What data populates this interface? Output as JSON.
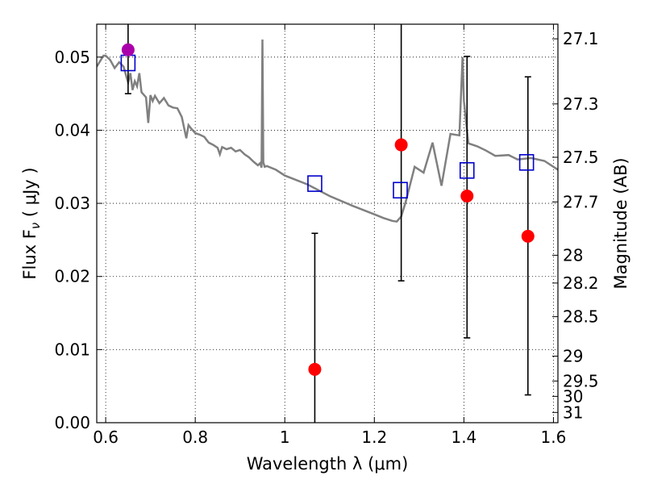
{
  "chart_data": {
    "type": "scatter",
    "xlabel": "Wavelength  λ (μm)",
    "ylabel": "Flux  F",
    "ylabel_sub": "ν",
    "ylabel_unit": "  ( μJy )",
    "y2label": "Magnitude (AB)",
    "xlim": [
      0.58,
      1.61
    ],
    "ylim": [
      0.0,
      0.0545
    ],
    "grid": true,
    "x_ticks": [
      0.6,
      0.8,
      1.0,
      1.2,
      1.4,
      1.6
    ],
    "x_tick_labels": [
      "0.6",
      "0.8",
      "1",
      "1.2",
      "1.4",
      "1.6"
    ],
    "y_ticks": [
      0.0,
      0.01,
      0.02,
      0.03,
      0.04,
      0.05
    ],
    "y_tick_labels": [
      "0.00",
      "0.01",
      "0.02",
      "0.03",
      "0.04",
      "0.05"
    ],
    "y2_ticks": [
      {
        "flux": 0.0525,
        "label": "27.1"
      },
      {
        "flux": 0.0436,
        "label": "27.3"
      },
      {
        "flux": 0.0363,
        "label": "27.5"
      },
      {
        "flux": 0.0302,
        "label": "27.7"
      },
      {
        "flux": 0.0229,
        "label": "28"
      },
      {
        "flux": 0.0191,
        "label": "28.2"
      },
      {
        "flux": 0.0145,
        "label": "28.5"
      },
      {
        "flux": 0.0091,
        "label": "29"
      },
      {
        "flux": 0.0057,
        "label": "29.5"
      },
      {
        "flux": 0.0036,
        "label": "30"
      },
      {
        "flux": 0.0014,
        "label": "31"
      }
    ],
    "model_spectrum": {
      "color": "#808080",
      "x": [
        0.58,
        0.595,
        0.6,
        0.61,
        0.62,
        0.63,
        0.64,
        0.65,
        0.655,
        0.66,
        0.665,
        0.67,
        0.675,
        0.68,
        0.69,
        0.695,
        0.7,
        0.705,
        0.71,
        0.72,
        0.73,
        0.74,
        0.75,
        0.76,
        0.77,
        0.78,
        0.785,
        0.79,
        0.8,
        0.81,
        0.82,
        0.83,
        0.84,
        0.85,
        0.855,
        0.86,
        0.87,
        0.88,
        0.89,
        0.9,
        0.91,
        0.92,
        0.93,
        0.94,
        0.945,
        0.948,
        0.95,
        0.952,
        0.955,
        0.96,
        0.98,
        1.0,
        1.05,
        1.1,
        1.15,
        1.2,
        1.22,
        1.24,
        1.25,
        1.26,
        1.27,
        1.29,
        1.31,
        1.33,
        1.35,
        1.37,
        1.39,
        1.397,
        1.4,
        1.41,
        1.43,
        1.45,
        1.47,
        1.5,
        1.52,
        1.55,
        1.58,
        1.61
      ],
      "y": [
        0.0487,
        0.0502,
        0.0502,
        0.0496,
        0.0485,
        0.0493,
        0.0487,
        0.0465,
        0.0478,
        0.0455,
        0.0467,
        0.046,
        0.0478,
        0.0452,
        0.0445,
        0.041,
        0.0448,
        0.044,
        0.0447,
        0.0437,
        0.0444,
        0.0434,
        0.0431,
        0.043,
        0.0418,
        0.0389,
        0.0407,
        0.0403,
        0.0396,
        0.0394,
        0.0391,
        0.0383,
        0.038,
        0.0376,
        0.0367,
        0.0377,
        0.0374,
        0.0376,
        0.0371,
        0.0373,
        0.0367,
        0.0363,
        0.0357,
        0.0352,
        0.0355,
        0.0349,
        0.0524,
        0.0356,
        0.035,
        0.0351,
        0.0346,
        0.0338,
        0.0326,
        0.031,
        0.0297,
        0.0285,
        0.028,
        0.0276,
        0.0275,
        0.0282,
        0.0302,
        0.035,
        0.0342,
        0.0383,
        0.0324,
        0.0395,
        0.0393,
        0.05,
        0.044,
        0.0382,
        0.0378,
        0.0372,
        0.0365,
        0.0366,
        0.036,
        0.0362,
        0.0358,
        0.0346
      ]
    },
    "series": [
      {
        "marker": "open-square",
        "color": "#0000cc",
        "points": [
          {
            "x": 0.65,
            "y": 0.0492
          },
          {
            "x": 1.067,
            "y": 0.0327
          },
          {
            "x": 1.258,
            "y": 0.0318
          },
          {
            "x": 1.407,
            "y": 0.0345
          },
          {
            "x": 1.54,
            "y": 0.0356
          }
        ]
      },
      {
        "marker": "filled-circle",
        "color": "#ff0000",
        "points": [
          {
            "x": 1.067,
            "y": 0.0073,
            "err": [
              0.0,
              0.0259
            ]
          },
          {
            "x": 1.26,
            "y": 0.038,
            "err": [
              0.0194,
              0.0545
            ]
          },
          {
            "x": 1.407,
            "y": 0.031,
            "err": [
              0.0116,
              0.0501
            ]
          },
          {
            "x": 1.543,
            "y": 0.0255,
            "err": [
              0.0038,
              0.0473
            ]
          }
        ]
      },
      {
        "marker": "filled-circle",
        "color": "#aa00aa",
        "points": [
          {
            "x": 0.65,
            "y": 0.051,
            "err": [
              0.045,
              0.0545
            ]
          }
        ]
      }
    ]
  }
}
